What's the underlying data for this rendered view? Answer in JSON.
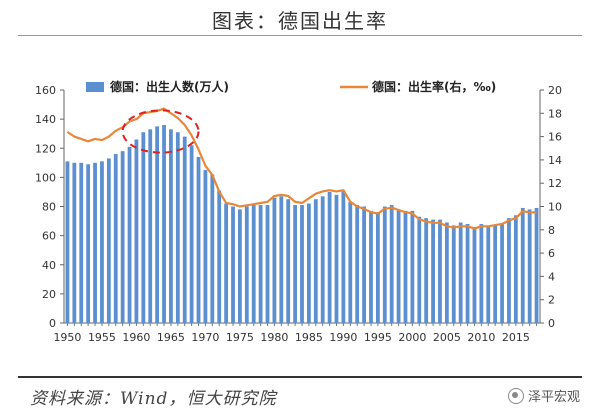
{
  "page": {
    "title": "图表：德国出生率",
    "source": "资料来源：Wind，恒大研究院",
    "watermark": "泽平宏观"
  },
  "chart_data": {
    "type": "bar+line",
    "categories": [
      1950,
      1951,
      1952,
      1953,
      1954,
      1955,
      1956,
      1957,
      1958,
      1959,
      1960,
      1961,
      1962,
      1963,
      1964,
      1965,
      1966,
      1967,
      1968,
      1969,
      1970,
      1971,
      1972,
      1973,
      1974,
      1975,
      1976,
      1977,
      1978,
      1979,
      1980,
      1981,
      1982,
      1983,
      1984,
      1985,
      1986,
      1987,
      1988,
      1989,
      1990,
      1991,
      1992,
      1993,
      1994,
      1995,
      1996,
      1997,
      1998,
      1999,
      2000,
      2001,
      2002,
      2003,
      2004,
      2005,
      2006,
      2007,
      2008,
      2009,
      2010,
      2011,
      2012,
      2013,
      2014,
      2015,
      2016,
      2017,
      2018
    ],
    "x_tick_labels": [
      "1950",
      "1955",
      "1960",
      "1965",
      "1970",
      "1975",
      "1980",
      "1985",
      "1990",
      "1995",
      "2000",
      "2005",
      "2010",
      "2015"
    ],
    "series": [
      {
        "name": "德国：出生人数(万人)",
        "type": "bar",
        "axis": "left",
        "color": "#5b8fd0",
        "values": [
          111,
          110,
          110,
          109,
          110,
          111,
          113,
          116,
          118,
          121,
          126,
          131,
          133,
          135,
          136,
          133,
          131,
          128,
          122,
          114,
          105,
          102,
          91,
          82,
          80,
          78,
          80,
          81,
          81,
          81,
          86,
          87,
          85,
          81,
          81,
          82,
          85,
          87,
          90,
          88,
          91,
          83,
          81,
          80,
          77,
          76,
          80,
          81,
          78,
          77,
          77,
          73,
          72,
          71,
          71,
          69,
          67,
          69,
          68,
          66,
          68,
          66,
          67,
          68,
          72,
          74,
          79,
          78,
          79
        ]
      },
      {
        "name": "德国：出生率(右，‰)",
        "type": "line",
        "axis": "right",
        "color": "#e8873a",
        "values": [
          16.4,
          16.0,
          15.8,
          15.6,
          15.8,
          15.7,
          16.0,
          16.5,
          16.8,
          17.3,
          17.5,
          18.0,
          18.1,
          18.2,
          18.4,
          18.0,
          17.6,
          17.0,
          16.1,
          14.9,
          13.5,
          12.7,
          11.3,
          10.3,
          10.2,
          10.0,
          10.1,
          10.2,
          10.3,
          10.4,
          10.9,
          11.0,
          10.9,
          10.4,
          10.3,
          10.7,
          11.1,
          11.3,
          11.4,
          11.3,
          11.4,
          10.4,
          10.0,
          9.8,
          9.5,
          9.4,
          9.8,
          9.9,
          9.7,
          9.5,
          9.4,
          8.9,
          8.7,
          8.6,
          8.6,
          8.3,
          8.2,
          8.3,
          8.3,
          8.1,
          8.3,
          8.3,
          8.4,
          8.5,
          8.8,
          9.0,
          9.6,
          9.5,
          9.5
        ]
      }
    ],
    "y_left": {
      "min": 0,
      "max": 160,
      "ticks": [
        0,
        20,
        40,
        60,
        80,
        100,
        120,
        140,
        160
      ]
    },
    "y_right": {
      "min": 0,
      "max": 20,
      "ticks": [
        0,
        2,
        4,
        6,
        8,
        10,
        12,
        14,
        16,
        18,
        20
      ]
    },
    "annotation": {
      "shape": "dashed-ellipse",
      "color": "#e02020",
      "x_from": 1959,
      "x_to": 1968,
      "y_from": 117,
      "y_to": 146
    }
  }
}
